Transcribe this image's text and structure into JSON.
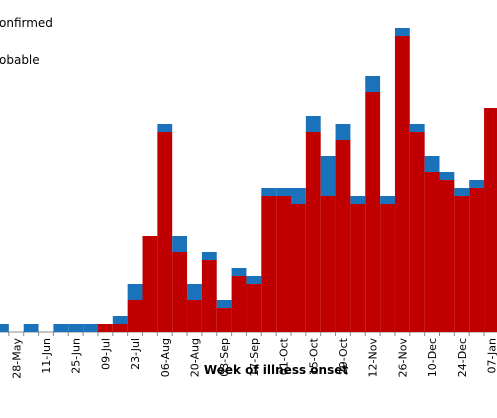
{
  "chart_data": {
    "type": "stacked-bar",
    "x_label": "Week of illness onset",
    "categories": [
      null,
      "28-May",
      null,
      "11-Jun",
      null,
      "25-Jun",
      null,
      "09-Jul",
      null,
      "23-Jul",
      null,
      "06-Aug",
      null,
      "20-Aug",
      null,
      "03-Sep",
      null,
      "17-Sep",
      null,
      "01-Oct",
      null,
      "15-Oct",
      null,
      "29-Oct",
      null,
      "12-Nov",
      null,
      "26-Nov",
      null,
      "10-Dec",
      null,
      "24-Dec",
      null,
      "07-Jan"
    ],
    "series": [
      {
        "name": "onfirmed",
        "color": "#c00000",
        "values": [
          0,
          0,
          0,
          0,
          0,
          0,
          0,
          1,
          1,
          4,
          12,
          25,
          10,
          4,
          9,
          3,
          7,
          6,
          17,
          17,
          16,
          25,
          17,
          24,
          16,
          30,
          16,
          37,
          25,
          20,
          19,
          17,
          18,
          28
        ]
      },
      {
        "name": "obable",
        "color": "#1a72bb",
        "values": [
          1,
          0,
          1,
          0,
          1,
          1,
          1,
          0,
          1,
          2,
          0,
          1,
          2,
          2,
          1,
          1,
          1,
          1,
          1,
          1,
          2,
          2,
          5,
          2,
          1,
          2,
          1,
          1,
          1,
          2,
          1,
          1,
          1,
          0
        ]
      }
    ],
    "ylim": [
      0,
      37.5
    ]
  }
}
